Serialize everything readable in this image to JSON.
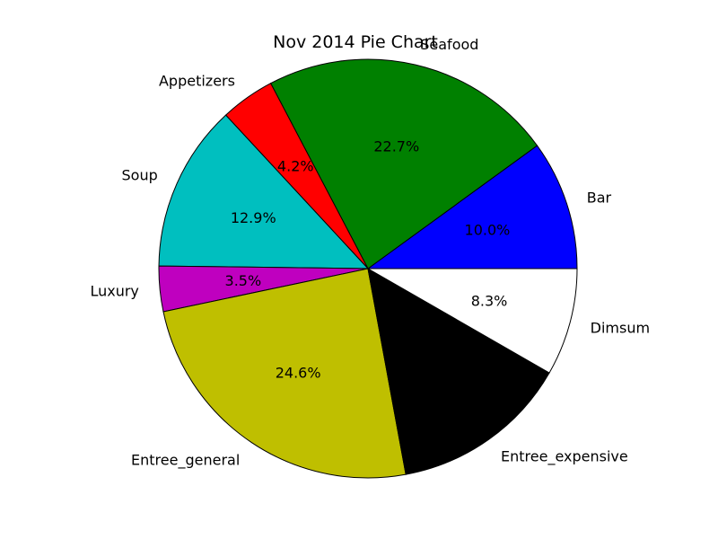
{
  "chart_data": {
    "type": "pie",
    "title": "Nov 2014 Pie Chart",
    "start_angle_deg": 0,
    "direction": "counterclockwise",
    "slices": [
      {
        "label": "Bar",
        "percent": 10.0,
        "pct_label": "10.0%",
        "color": "#0000ff"
      },
      {
        "label": "Seafood",
        "percent": 22.7,
        "pct_label": "22.7%",
        "color": "#008000"
      },
      {
        "label": "Appetizers",
        "percent": 4.2,
        "pct_label": "4.2%",
        "color": "#ff0000"
      },
      {
        "label": "Soup",
        "percent": 12.9,
        "pct_label": "12.9%",
        "color": "#00bfbf"
      },
      {
        "label": "Luxury",
        "percent": 3.5,
        "pct_label": "3.5%",
        "color": "#bf00bf"
      },
      {
        "label": "Entree_general",
        "percent": 24.6,
        "pct_label": "24.6%",
        "color": "#bfbf00"
      },
      {
        "label": "Entree_expensive",
        "percent": 13.8,
        "pct_label": "",
        "color": "#000000"
      },
      {
        "label": "Dimsum",
        "percent": 8.3,
        "pct_label": "8.3%",
        "color": "#ffffff"
      }
    ]
  }
}
